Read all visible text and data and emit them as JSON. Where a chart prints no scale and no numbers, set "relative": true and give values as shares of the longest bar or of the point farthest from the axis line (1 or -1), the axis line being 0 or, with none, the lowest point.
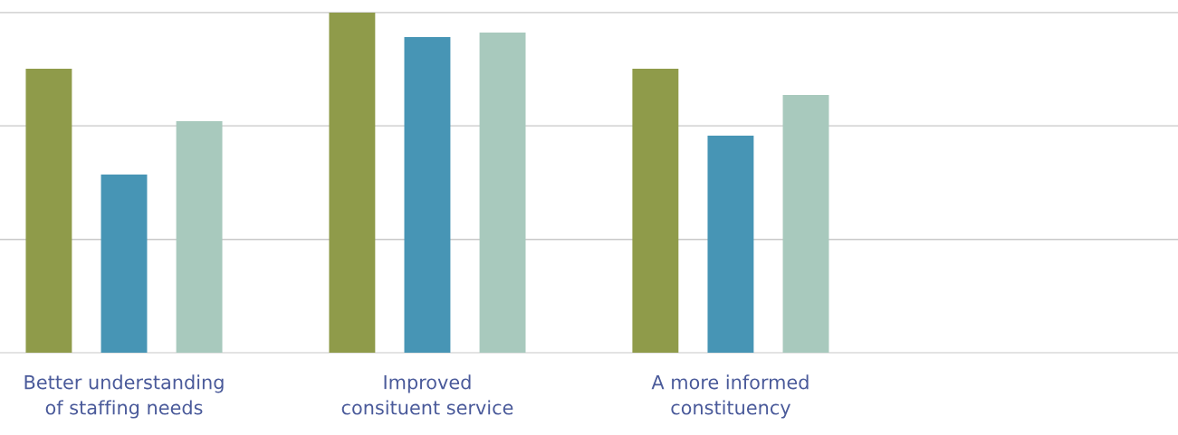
{
  "chart_data": {
    "type": "bar",
    "relative": true,
    "ref_lines": [
      {
        "axis": "y",
        "value": 0.333,
        "color": "#c8c8c8"
      },
      {
        "axis": "y",
        "value": 0.667,
        "color": "#c8c8c8"
      },
      {
        "axis": "y",
        "value": 1,
        "color": "#c8c8c8"
      }
    ],
    "categories": [
      "Better understanding of staffing needs",
      "Improved consituent service",
      "A more informed constituency",
      null
    ],
    "series": [
      {
        "color": "#8f9b4a",
        "values": [
          0.835,
          1,
          0.835,
          null
        ]
      },
      {
        "color": "#4795b5",
        "values": [
          0.524,
          0.928,
          0.638,
          null
        ]
      },
      {
        "color": "#a8c9bd",
        "values": [
          0.681,
          0.941,
          0.758,
          null
        ]
      }
    ]
  }
}
